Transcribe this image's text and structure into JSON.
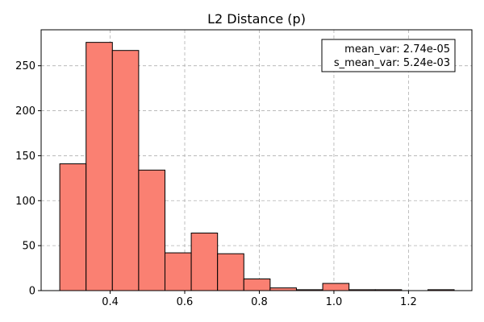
{
  "chart_data": {
    "type": "bar",
    "title": "L2 Distance (p)",
    "xlabel": "",
    "ylabel": "",
    "xlim": [
      0.215,
      1.37
    ],
    "ylim": [
      0,
      290
    ],
    "x_ticks": [
      0.4,
      0.6,
      0.8,
      1.0,
      1.2
    ],
    "y_ticks": [
      0,
      50,
      100,
      150,
      200,
      250
    ],
    "grid": true,
    "bar_color": "#fa8072",
    "edge_color": "#000000",
    "bin_width": 0.0705,
    "bins": [
      {
        "x0": 0.265,
        "count": 141
      },
      {
        "x0": 0.3355,
        "count": 276
      },
      {
        "x0": 0.406,
        "count": 267
      },
      {
        "x0": 0.4765,
        "count": 134
      },
      {
        "x0": 0.547,
        "count": 42
      },
      {
        "x0": 0.6175,
        "count": 64
      },
      {
        "x0": 0.688,
        "count": 41
      },
      {
        "x0": 0.7585,
        "count": 13
      },
      {
        "x0": 0.829,
        "count": 3
      },
      {
        "x0": 0.8995,
        "count": 1
      },
      {
        "x0": 0.97,
        "count": 8
      },
      {
        "x0": 1.0405,
        "count": 1
      },
      {
        "x0": 1.111,
        "count": 1
      },
      {
        "x0": 1.1815,
        "count": 0
      },
      {
        "x0": 1.252,
        "count": 1
      }
    ],
    "annotation": {
      "lines": [
        "mean_var: 2.74e-05",
        "s_mean_var: 5.24e-03"
      ],
      "placement": "top-right"
    }
  }
}
